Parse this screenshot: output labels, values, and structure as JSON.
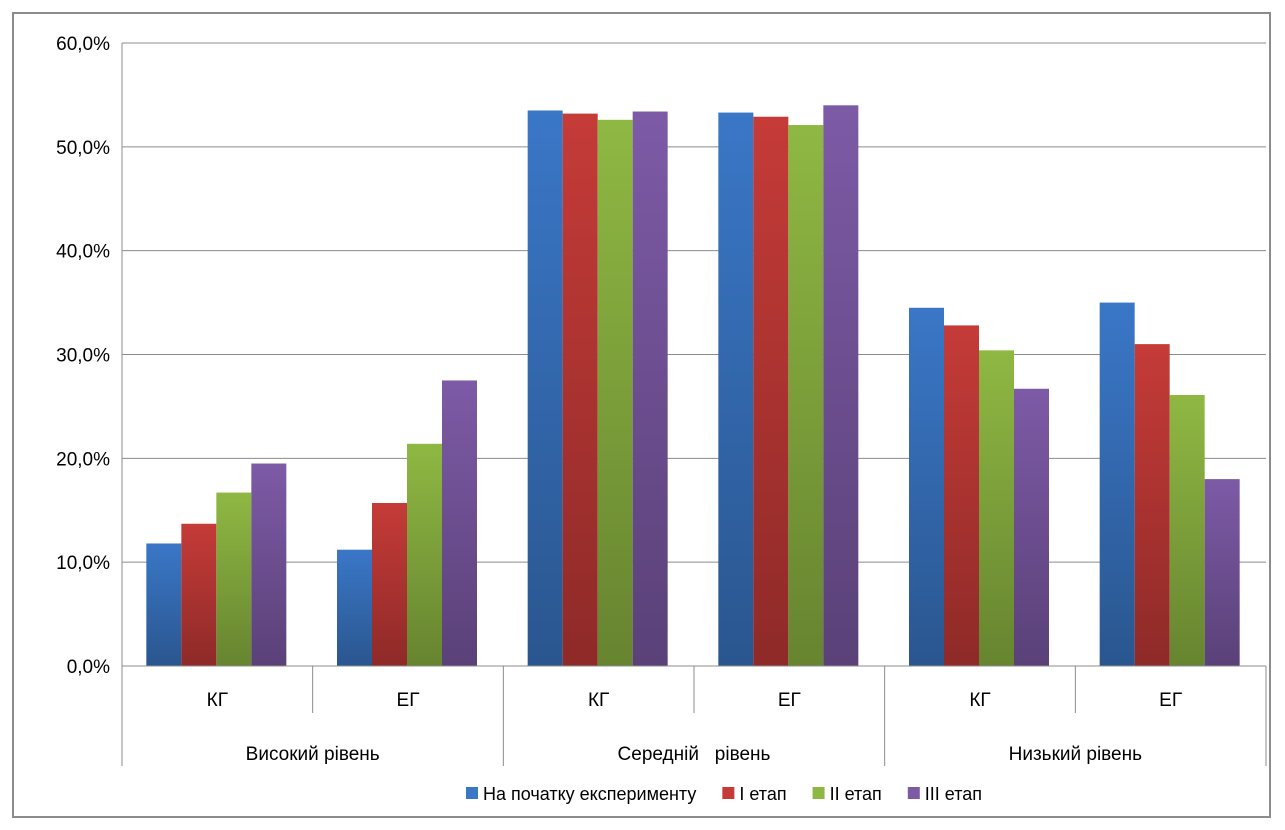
{
  "chart_data": {
    "type": "bar",
    "title": "",
    "xlabel": "",
    "ylabel": "",
    "ylim": [
      0,
      60
    ],
    "y_ticks": [
      "0,0%",
      "10,0%",
      "20,0%",
      "30,0%",
      "40,0%",
      "50,0%",
      "60,0%"
    ],
    "y_tick_values": [
      0,
      10,
      20,
      30,
      40,
      50,
      60
    ],
    "grid": true,
    "legend_position": "bottom",
    "categories": [
      "КГ",
      "ЕГ",
      "КГ",
      "ЕГ",
      "КГ",
      "ЕГ"
    ],
    "groups": [
      {
        "label": "Високий рівень",
        "span": 2
      },
      {
        "label": "Середній   рівень",
        "span": 2
      },
      {
        "label": "Низький рівень",
        "span": 2
      }
    ],
    "series": [
      {
        "name": "На початку експерименту",
        "color": "#3a77c7",
        "values": [
          11.8,
          11.2,
          53.5,
          53.3,
          34.5,
          35.0
        ]
      },
      {
        "name": "І етап",
        "color": "#c53b38",
        "values": [
          13.7,
          15.7,
          53.2,
          52.9,
          32.8,
          31.0
        ]
      },
      {
        "name": "ІІ етап",
        "color": "#8fb843",
        "values": [
          16.7,
          21.4,
          52.6,
          52.1,
          30.4,
          26.1
        ]
      },
      {
        "name": "ІІІ етап",
        "color": "#7d5aa6",
        "values": [
          19.5,
          27.5,
          53.4,
          54.0,
          26.7,
          18.0
        ]
      }
    ]
  }
}
